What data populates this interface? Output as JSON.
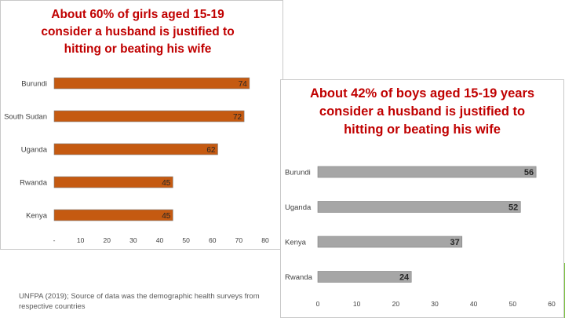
{
  "source_note": "UNFPA (2019); Source of data was the demographic health surveys from respective countries",
  "colors": {
    "accent": "#7dc242",
    "girls_bar": "#c55a11",
    "boys_bar": "#a6a6a6",
    "title": "#c00000",
    "label": "#404040"
  },
  "chart_data": [
    {
      "type": "bar",
      "orientation": "horizontal",
      "title": "About 60% of girls aged 15-19 consider a husband is justified to hitting or beating his wife",
      "categories": [
        "Burundi",
        "South Sudan",
        "Uganda",
        "Rwanda",
        "Kenya"
      ],
      "values": [
        74,
        72,
        62,
        45,
        45
      ],
      "xlim": [
        0,
        80
      ],
      "x_ticks": [
        0,
        10,
        20,
        30,
        40,
        50,
        60,
        70,
        80
      ],
      "x_tick_labels": [
        "-",
        "10",
        "20",
        "30",
        "40",
        "50",
        "60",
        "70",
        "80"
      ],
      "grid": false,
      "data_labels": "inside-end"
    },
    {
      "type": "bar",
      "orientation": "horizontal",
      "title": "About 42% of boys aged 15-19 years consider a husband is justified to hitting or beating his wife",
      "categories": [
        "Burundi",
        "Uganda",
        "Kenya",
        "Rwanda"
      ],
      "values": [
        56,
        52,
        37,
        24
      ],
      "xlim": [
        0,
        60
      ],
      "x_ticks": [
        0,
        10,
        20,
        30,
        40,
        50,
        60
      ],
      "x_tick_labels": [
        "0",
        "10",
        "20",
        "30",
        "40",
        "50",
        "60"
      ],
      "grid": false,
      "data_labels": "inside-end"
    }
  ]
}
